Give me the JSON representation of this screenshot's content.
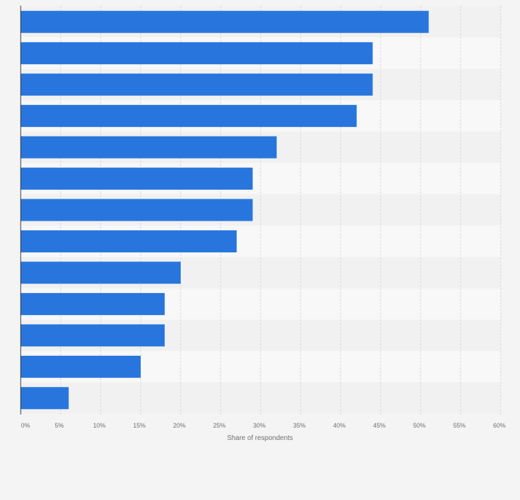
{
  "chart_data": {
    "type": "bar",
    "orientation": "horizontal",
    "categories": [
      "",
      "",
      "",
      "",
      "",
      "",
      "",
      "",
      "",
      "",
      "",
      "",
      ""
    ],
    "values": [
      51,
      44,
      44,
      42,
      32,
      29,
      29,
      27,
      20,
      18,
      18,
      15,
      6
    ],
    "xlabel": "Share of respondents",
    "xlim": [
      0,
      60
    ],
    "x_ticks": [
      "0%",
      "5%",
      "10%",
      "15%",
      "20%",
      "25%",
      "30%",
      "35%",
      "40%",
      "45%",
      "50%",
      "55%",
      "60%"
    ],
    "grid": true,
    "legend": "none",
    "colors": {
      "bar": "#2876dd",
      "page_background": "#f4f4f4",
      "row_band_light": "#f8f8f8",
      "row_band_dark": "#f1f1f1",
      "grid": "#d6d6d6",
      "axis": "#333333",
      "text": "#6e6e6e"
    }
  }
}
